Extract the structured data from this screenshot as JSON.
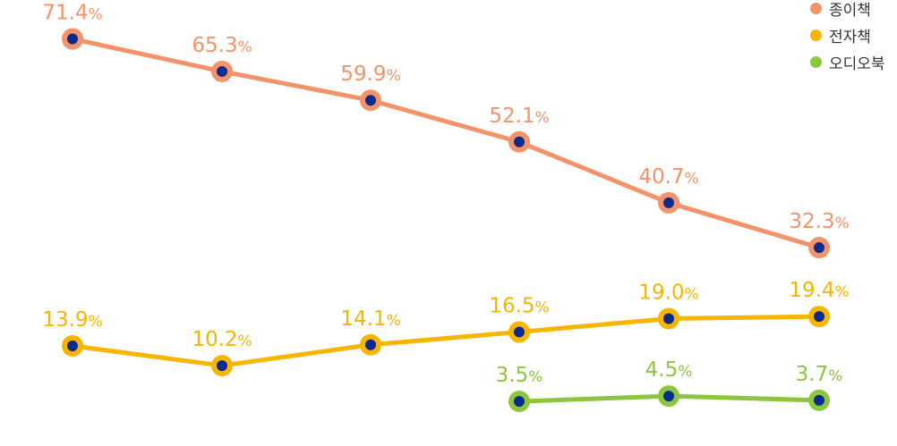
{
  "chart_data": {
    "type": "line",
    "categories": [
      "",
      "",
      "",
      "",
      "",
      ""
    ],
    "ylim": [
      0,
      75
    ],
    "grid": false,
    "legend_position": "top-right",
    "marker_fill": "#0a2a8c",
    "series": [
      {
        "name": "종이책",
        "color": "#f4936a",
        "values": [
          71.4,
          65.3,
          59.9,
          52.1,
          40.7,
          32.3
        ]
      },
      {
        "name": "전자책",
        "color": "#f7b500",
        "values": [
          13.9,
          10.2,
          14.1,
          16.5,
          19.0,
          19.4
        ]
      },
      {
        "name": "오디오북",
        "color": "#8cc63f",
        "values": [
          null,
          null,
          null,
          3.5,
          4.5,
          3.7
        ]
      }
    ],
    "value_labels": [
      [
        "71.4",
        "65.3",
        "59.9",
        "52.1",
        "40.7",
        "32.3"
      ],
      [
        "13.9",
        "10.2",
        "14.1",
        "16.5",
        "19.0",
        "19.4"
      ],
      [
        null,
        null,
        null,
        "3.5",
        "4.5",
        "3.7"
      ]
    ],
    "unit": "%"
  }
}
